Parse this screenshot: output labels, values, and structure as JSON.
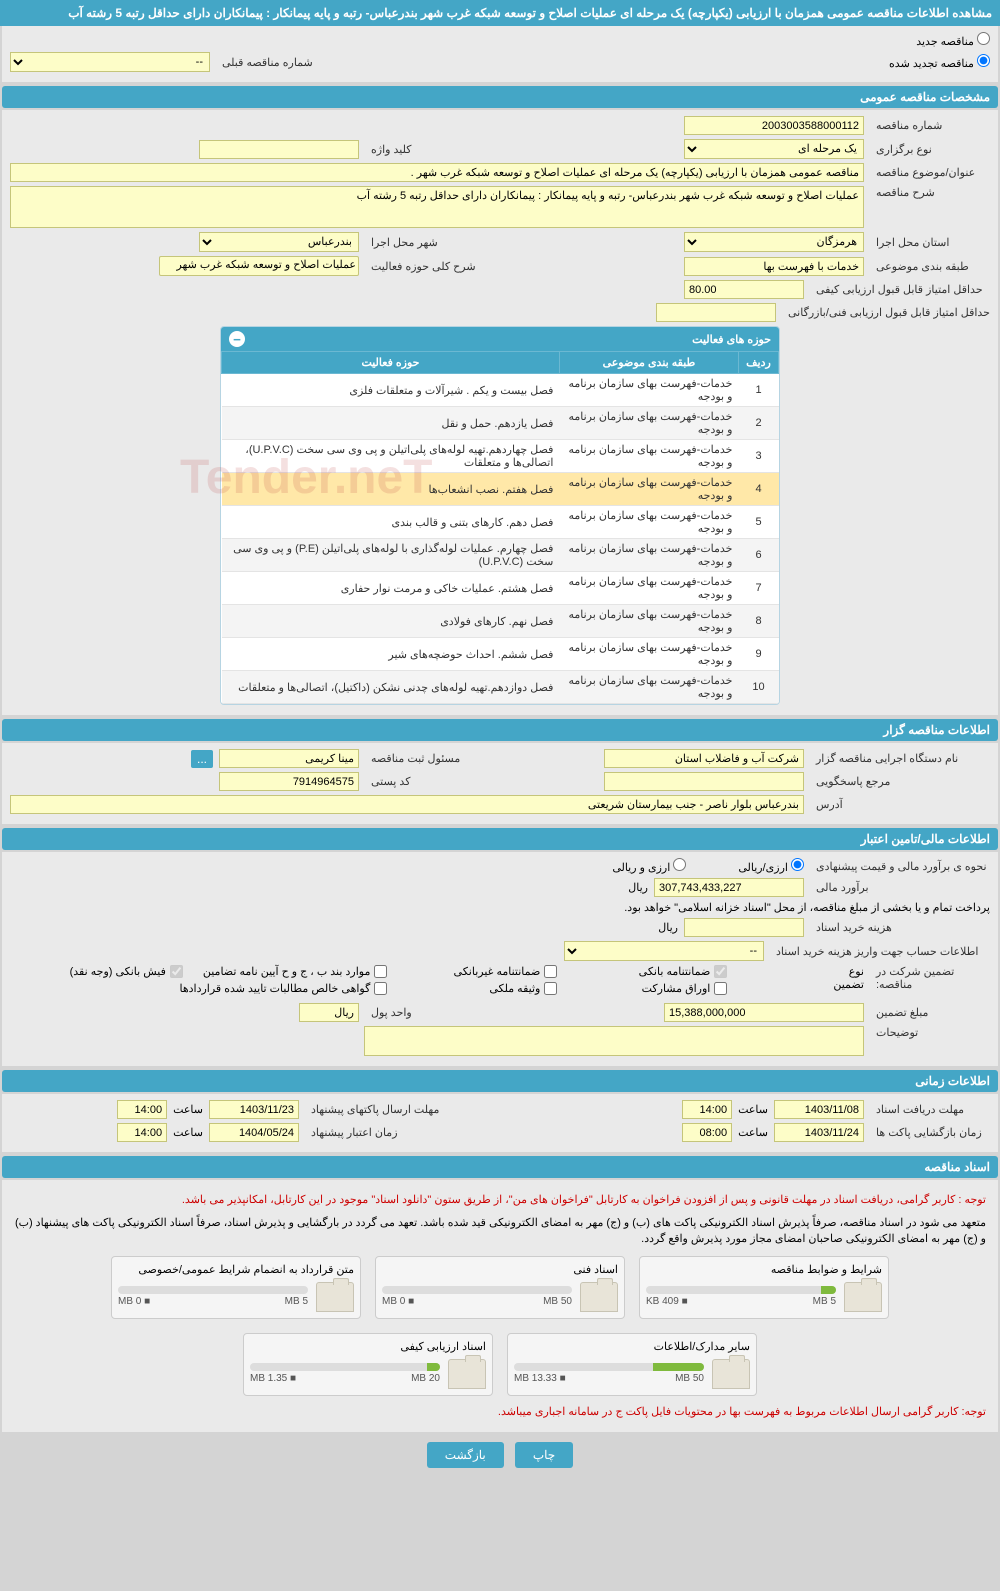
{
  "page_title": "مشاهده اطلاعات مناقصه عمومی همزمان با ارزیابی (یکپارچه) یک مرحله ای عملیات اصلاح و توسعه شبکه غرب شهر بندرعباس- رتبه و پایه پیمانکار : پیمانکاران دارای حداقل رتبه 5 رشته آب",
  "radios": {
    "new_tender": "مناقصه جدید",
    "renewed_tender": "مناقصه تجدید شده",
    "prev_number_label": "شماره مناقصه قبلی",
    "prev_number_value": "--"
  },
  "sections": {
    "general": "مشخصات مناقصه عمومی",
    "activity_scope": "حوزه های فعالیت",
    "organizer": "اطلاعات مناقصه گزار",
    "financial": "اطلاعات مالی/تامین اعتبار",
    "timing": "اطلاعات زمانی",
    "documents": "اسناد مناقصه"
  },
  "general": {
    "tender_number_label": "شماره مناقصه",
    "tender_number": "2003003588000112",
    "holding_type_label": "نوع برگزاری",
    "holding_type": "یک مرحله ای",
    "keyword_label": "کلید واژه",
    "keyword": "",
    "subject_label": "عنوان/موضوع مناقصه",
    "subject": "مناقصه عمومی همزمان با ارزیابی (یکپارچه) یک مرحله ای عملیات اصلاح و توسعه شبکه غرب شهر .",
    "desc_label": "شرح مناقصه",
    "desc": "عملیات اصلاح و توسعه شبکه غرب شهر بندرعباس- رتبه و پایه پیمانکار : پیمانکاران دارای حداقل رتبه 5 رشته آب",
    "province_label": "استان محل اجرا",
    "province": "هرمزگان",
    "city_label": "شهر محل اجرا",
    "city": "بندرعباس",
    "classification_label": "طبقه بندی موضوعی",
    "classification": "خدمات با فهرست بها",
    "activity_desc_label": "شرح کلی حوزه فعالیت",
    "activity_desc": "عملیات اصلاح و توسعه شبکه غرب شهر",
    "min_quality_score_label": "حداقل امتیاز قابل قبول ارزیابی کیفی",
    "min_quality_score": "80.00",
    "min_tech_score_label": "حداقل امتیاز قابل قبول ارزیابی فنی/بازرگانی",
    "min_tech_score": ""
  },
  "activity_table": {
    "headers": {
      "row": "ردیف",
      "classification": "طبقه بندی موضوعی",
      "scope": "حوزه فعالیت"
    },
    "rows": [
      {
        "n": "1",
        "c": "خدمات-فهرست بهای سازمان برنامه و بودجه",
        "s": "فصل بیست و یکم . شیرآلات و متعلقات فلزی"
      },
      {
        "n": "2",
        "c": "خدمات-فهرست بهای سازمان برنامه و بودجه",
        "s": "فصل یازدهم. حمل و نقل"
      },
      {
        "n": "3",
        "c": "خدمات-فهرست بهای سازمان برنامه و بودجه",
        "s": "فصل چهاردهم.تهیه لوله‌های پلی‌اتیلن و پی وی سی سخت (U.P.V.C)، اتصالی‌ها و متعلقات"
      },
      {
        "n": "4",
        "c": "خدمات-فهرست بهای سازمان برنامه و بودجه",
        "s": "فصل هفتم. نصب انشعاب‌ها",
        "hl": true
      },
      {
        "n": "5",
        "c": "خدمات-فهرست بهای سازمان برنامه و بودجه",
        "s": "فصل دهم. کارهای بتنی و قالب بندی"
      },
      {
        "n": "6",
        "c": "خدمات-فهرست بهای سازمان برنامه و بودجه",
        "s": "فصل چهارم. عملیات لوله‌گذاری با لوله‌های پلی‌اتیلن (P.E) و پی وی سی سخت (U.P.V.C)"
      },
      {
        "n": "7",
        "c": "خدمات-فهرست بهای سازمان برنامه و بودجه",
        "s": "فصل هشتم. عملیات خاکی و مرمت نوار حفاری"
      },
      {
        "n": "8",
        "c": "خدمات-فهرست بهای سازمان برنامه و بودجه",
        "s": "فصل نهم. کارهای فولادی"
      },
      {
        "n": "9",
        "c": "خدمات-فهرست بهای سازمان برنامه و بودجه",
        "s": "فصل ششم. احداث حوضچه‌های شیر"
      },
      {
        "n": "10",
        "c": "خدمات-فهرست بهای سازمان برنامه و بودجه",
        "s": "فصل دوازدهم.تهیه لوله‌های چدنی نشکن (داکتیل)، اتصالی‌ها و متعلقات"
      }
    ]
  },
  "organizer": {
    "exec_org_label": "نام دستگاه اجرایی مناقصه گزار",
    "exec_org": "شرکت آب و فاضلاب استان",
    "registrar_label": "مسئول ثبت مناقصه",
    "registrar": "مینا کریمی",
    "reply_ref_label": "مرجع پاسخگویی",
    "reply_ref": "",
    "postal_label": "کد پستی",
    "postal": "7914964575",
    "address_label": "آدرس",
    "address": "بندرعباس بلوار ناصر - جنب بیمارستان شریعتی"
  },
  "financial": {
    "est_method_label": "نحوه ی برآورد مالی و قیمت پیشنهادی",
    "opt_rial": "ارزی/ریالی",
    "opt_currency": "ارزی و ریالی",
    "est_amount_label": "برآورد مالی",
    "est_amount": "307,743,433,227",
    "currency_unit": "ریال",
    "payment_note": "پرداخت تمام و یا بخشی از مبلغ مناقصه، از محل \"اسناد خزانه اسلامی\" خواهد بود.",
    "doc_fee_label": "هزینه خرید اسناد",
    "doc_fee": "",
    "account_info_label": "اطلاعات حساب جهت واریز هزینه خرید اسناد",
    "account_info": "--",
    "guarantee_label": "تضمین شرکت در مناقصه:",
    "guarantee_type_label": "نوع تضمین",
    "checks": {
      "bank_guarantee": "ضمانتنامه بانکی",
      "nonbank_guarantee": "ضمانتنامه غیربانکی",
      "items_bjh": "موارد بند ب ، ج و ح آیین نامه تضامین",
      "bank_receipt": "فیش بانکی (وجه نقد)",
      "participation_bonds": "اوراق مشارکت",
      "property_deed": "وثیقه ملکی",
      "net_claims": "گواهی خالص مطالبات تایید شده قراردادها"
    },
    "guarantee_amount_label": "مبلغ تضمین",
    "guarantee_amount": "15,388,000,000",
    "money_unit_label": "واحد پول",
    "money_unit": "ریال",
    "notes_label": "توضیحات",
    "notes": ""
  },
  "timing": {
    "doc_receive_label": "مهلت دریافت اسناد",
    "doc_receive_date": "1403/11/08",
    "doc_receive_time": "14:00",
    "packet_send_label": "مهلت ارسال پاکتهای پیشنهاد",
    "packet_send_date": "1403/11/23",
    "packet_send_time": "14:00",
    "packet_open_label": "زمان بازگشایی پاکت ها",
    "packet_open_date": "1403/11/24",
    "packet_open_time": "08:00",
    "validity_label": "زمان اعتبار پیشنهاد",
    "validity_date": "1404/05/24",
    "validity_time": "14:00",
    "time_label": "ساعت"
  },
  "documents": {
    "notice1": "توجه : کاربر گرامی، دریافت اسناد در مهلت قانونی و پس از افزودن فراخوان به کارتابل \"فراخوان های من\"، از طریق ستون \"دانلود اسناد\" موجود در این کارتابل، امکانپذیر می باشد.",
    "notice2_pre": "متعهد می شود در اسناد مناقصه، صرفاً پذیرش اسناد الکترونیکی پاکت های (ب) و (ج) مهر به امضای الکترونیکی قید شده باشد. تعهد می گردد در بارگشایی و پذیرش اسناد، صرفاً اسناد الکترونیکی پاکت های پیشنهاد (ب) و (ج) مهر به امضای الکترونیکی صاحبان امضای مجاز مورد پذیرش واقع گردد.",
    "cards": [
      {
        "title": "شرایط و ضوابط مناقصه",
        "used": "409 KB",
        "total": "5 MB",
        "pct": 8
      },
      {
        "title": "اسناد فنی",
        "used": "0 MB",
        "total": "50 MB",
        "pct": 0
      },
      {
        "title": "متن قرارداد به انضمام شرایط عمومی/خصوصی",
        "used": "0 MB",
        "total": "5 MB",
        "pct": 0
      },
      {
        "title": "سایر مدارک/اطلاعات",
        "used": "13.33 MB",
        "total": "50 MB",
        "pct": 27
      },
      {
        "title": "اسناد ارزیابی کیفی",
        "used": "1.35 MB",
        "total": "20 MB",
        "pct": 7
      }
    ],
    "footer_notice": "توجه: کاربر گرامی ارسال اطلاعات مربوط به فهرست بها در محتویات فایل پاکت ج در سامانه اجباری میباشد."
  },
  "buttons": {
    "print": "چاپ",
    "back": "بازگشت",
    "dots": "..."
  },
  "watermark": "Tender.neT",
  "colors": {
    "primary": "#44a6c6",
    "field_bg": "#fdfdc8"
  }
}
